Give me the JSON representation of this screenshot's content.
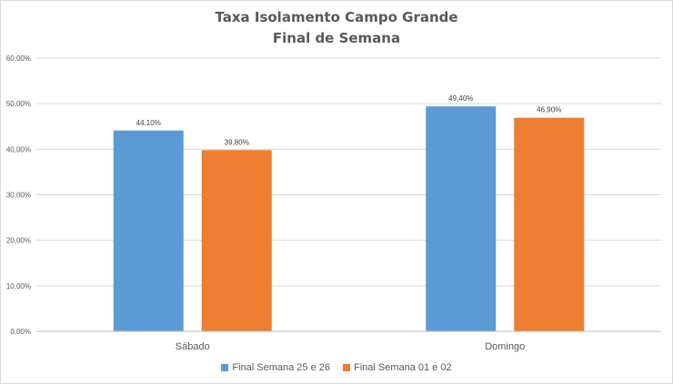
{
  "chart_data": {
    "type": "bar",
    "title": "Taxa Isolamento Campo Grande",
    "subtitle": "Final de Semana",
    "categories": [
      "Sábado",
      "Domingo"
    ],
    "series": [
      {
        "name": "Final Semana 25 e 26",
        "color": "#5b9bd5",
        "values": [
          44.1,
          49.4
        ],
        "labels": [
          "44,10%",
          "49,40%"
        ]
      },
      {
        "name": "Final Semana 01 e 02",
        "color": "#ed7d31",
        "values": [
          39.8,
          46.9
        ],
        "labels": [
          "39,80%",
          "46,90%"
        ]
      }
    ],
    "ylim": [
      0,
      60
    ],
    "yticks": [
      0,
      10,
      20,
      30,
      40,
      50,
      60
    ],
    "ytick_labels": [
      "0,00%",
      "10,00%",
      "20,00%",
      "30,00%",
      "40,00%",
      "50,00%",
      "60,00%"
    ],
    "grid": true,
    "legend_position": "bottom"
  }
}
